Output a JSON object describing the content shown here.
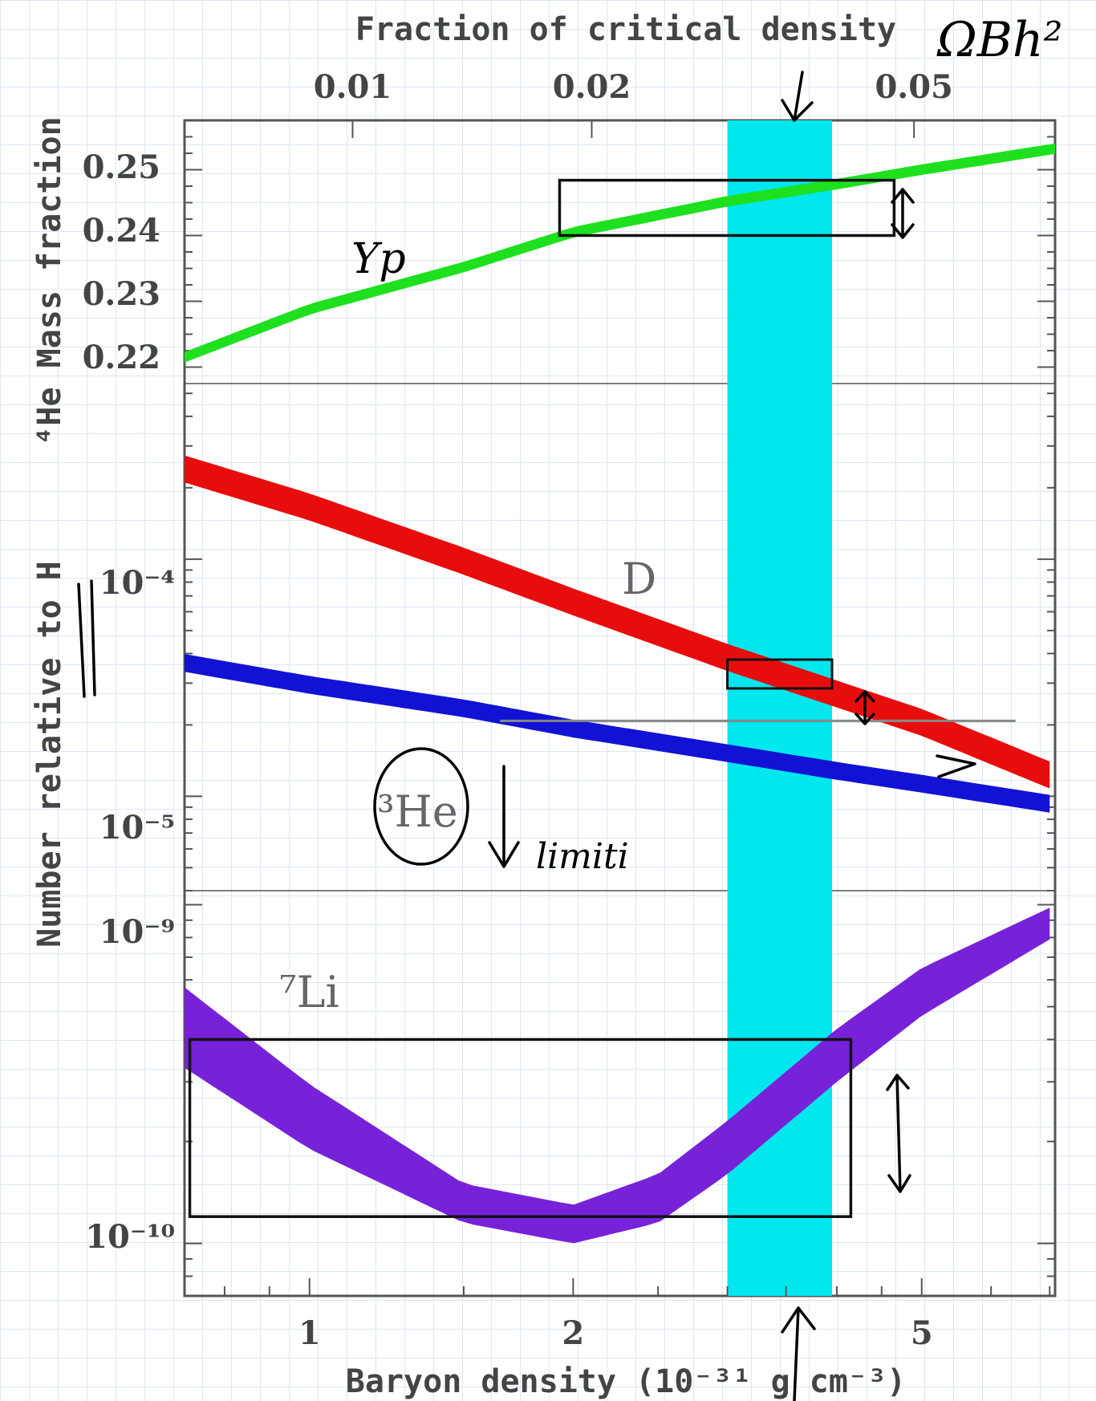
{
  "chart_data": {
    "type": "line",
    "xlabel": "Baryon density (10⁻³¹ g cm⁻³)",
    "x_scale": "log",
    "xlim": [
      0.72,
      7.1
    ],
    "x_ticks": [
      1,
      2,
      5
    ],
    "top_axis": {
      "label": "Fraction of critical density",
      "ticks": [
        "0.01",
        "0.02",
        "0.05"
      ],
      "tick_x": [
        1.12,
        2.1,
        4.9
      ]
    },
    "panels": [
      {
        "name": "helium",
        "ylabel": "⁴He Mass fraction",
        "y_scale": "linear",
        "ylim": [
          0.2175,
          0.2575
        ],
        "y_ticks": [
          "0.25",
          "0.24",
          "0.23",
          "0.22"
        ],
        "y_tick_values": [
          0.25,
          0.24,
          0.23,
          0.22
        ],
        "series": [
          {
            "name": "Yp",
            "color": "#1ee01e",
            "x": [
              0.72,
              1.0,
              1.5,
              2.0,
              3.0,
              4.0,
              5.0,
              7.1
            ],
            "y": [
              0.2215,
              0.2288,
              0.2352,
              0.2405,
              0.2452,
              0.2478,
              0.25,
              0.2532
            ],
            "band_halfwidth": 0.0008
          }
        ],
        "obs_box": {
          "x": [
            1.93,
            4.65
          ],
          "y": [
            0.24,
            0.2484
          ]
        }
      },
      {
        "name": "light-elements",
        "ylabel": "Number relative to H",
        "y_scale": "log",
        "ylim": [
          4e-06,
          0.00055
        ],
        "y_ticks": [
          "10⁻⁴",
          "10⁻⁵"
        ],
        "y_tick_values": [
          0.0001,
          1e-05
        ],
        "series": [
          {
            "name": "D",
            "color": "#e80d0d",
            "x": [
              0.72,
              1.0,
              1.5,
              2.0,
              3.0,
              4.0,
              5.0,
              7.0
            ],
            "y": [
              0.00024,
              0.000166,
              9.8e-05,
              6.6e-05,
              3.85e-05,
              2.7e-05,
              2.05e-05,
              1.23e-05
            ],
            "band_factor": 1.14
          },
          {
            "name": "³He",
            "color": "#1212d4",
            "x": [
              0.72,
              1.0,
              1.5,
              2.0,
              3.0,
              4.0,
              5.0,
              7.0
            ],
            "y": [
              3.65e-05,
              2.95e-05,
              2.35e-05,
              1.93e-05,
              1.52e-05,
              1.28e-05,
              1.13e-05,
              9.3e-06
            ],
            "band_factor": 1.09
          }
        ],
        "obs_box": {
          "x": [
            3.0,
            3.95
          ],
          "y": [
            2.85e-05,
            3.77e-05
          ]
        },
        "he3_limit": {
          "x": [
            1.65,
            6.4
          ],
          "y": 2.08e-05
        }
      },
      {
        "name": "lithium",
        "ylabel": "",
        "y_scale": "log",
        "ylim": [
          7e-11,
          1.1e-09
        ],
        "y_ticks": [
          "10⁻⁹",
          "10⁻¹⁰"
        ],
        "y_tick_values": [
          1e-09,
          1e-10
        ],
        "series": [
          {
            "name": "⁷Li",
            "color": "#7722d8",
            "x": [
              0.72,
              1.0,
              1.5,
              2.0,
              2.5,
              3.0,
              4.0,
              5.0,
              7.0
            ],
            "y_low": [
              3.3e-10,
              1.9e-10,
              1.15e-10,
              1e-10,
              1.15e-10,
              1.6e-10,
              3e-10,
              4.7e-10,
              7.9e-10
            ],
            "y_high": [
              5.7e-10,
              2.95e-10,
              1.5e-10,
              1.3e-10,
              1.6e-10,
              2.3e-10,
              4.3e-10,
              6.5e-10,
              9.8e-10
            ]
          }
        ],
        "obs_box": {
          "x": [
            0.73,
            4.15
          ],
          "y": [
            1.2e-10,
            4e-10
          ]
        }
      }
    ],
    "band": {
      "x": [
        3.0,
        3.95
      ],
      "color": "#00e7ee"
    }
  },
  "labels": {
    "yp": "Yp",
    "d": "D",
    "he3": "³He",
    "li7": "⁷Li"
  },
  "handwriting": {
    "omega": "ΩBh²",
    "limiti": "limiti"
  }
}
